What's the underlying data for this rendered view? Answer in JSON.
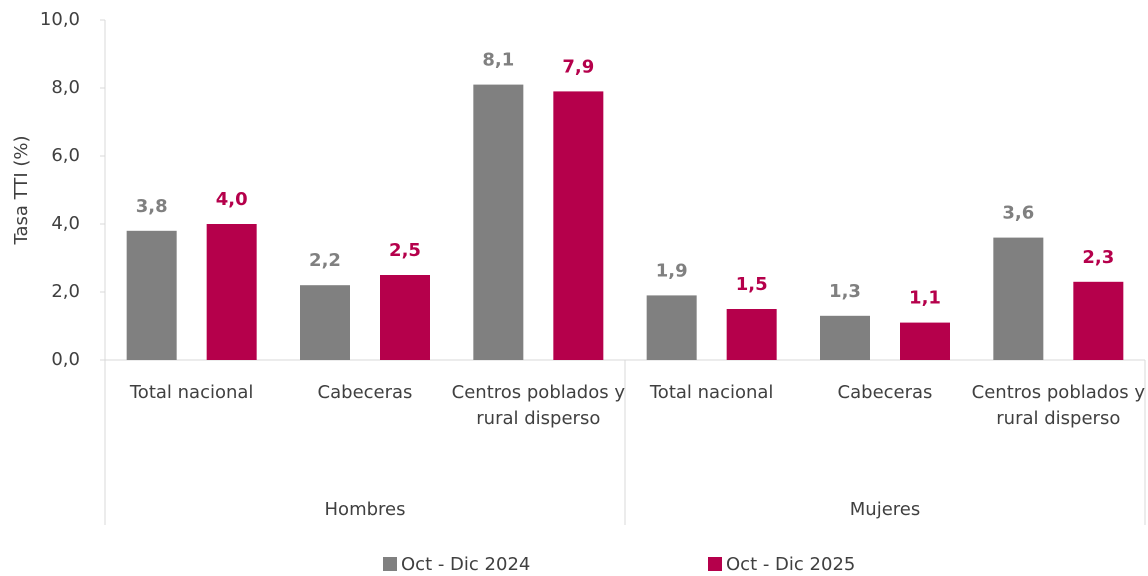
{
  "chart_data": {
    "type": "bar",
    "y_label": "Tasa TTI (%)",
    "categories": [
      "Total nacional",
      "Cabeceras",
      "Centros poblados y rural disperso",
      "Total nacional",
      "Cabeceras",
      "Centros poblados y rural disperso"
    ],
    "groups": [
      "Hombres",
      "Mujeres"
    ],
    "series": [
      {
        "name": "Oct - Dic 2024",
        "color": "#808080",
        "values": [
          3.8,
          2.2,
          8.1,
          1.9,
          1.3,
          3.6
        ],
        "value_labels": [
          "3,8",
          "2,2",
          "8,1",
          "1,9",
          "1,3",
          "3,6"
        ]
      },
      {
        "name": "Oct - Dic 2025",
        "color": "#b5004b",
        "values": [
          4.0,
          2.5,
          7.9,
          1.5,
          1.1,
          2.3
        ],
        "value_labels": [
          "4,0",
          "2,5",
          "7,9",
          "1,5",
          "1,1",
          "2,3"
        ]
      }
    ],
    "ylim": [
      0,
      10
    ],
    "yticks": [
      {
        "value": 0,
        "label": "0,0"
      },
      {
        "value": 2,
        "label": "2,0"
      },
      {
        "value": 4,
        "label": "4,0"
      },
      {
        "value": 6,
        "label": "6,0"
      },
      {
        "value": 8,
        "label": "8,0"
      },
      {
        "value": 10,
        "label": "10,0"
      }
    ],
    "legend": "bottom"
  }
}
